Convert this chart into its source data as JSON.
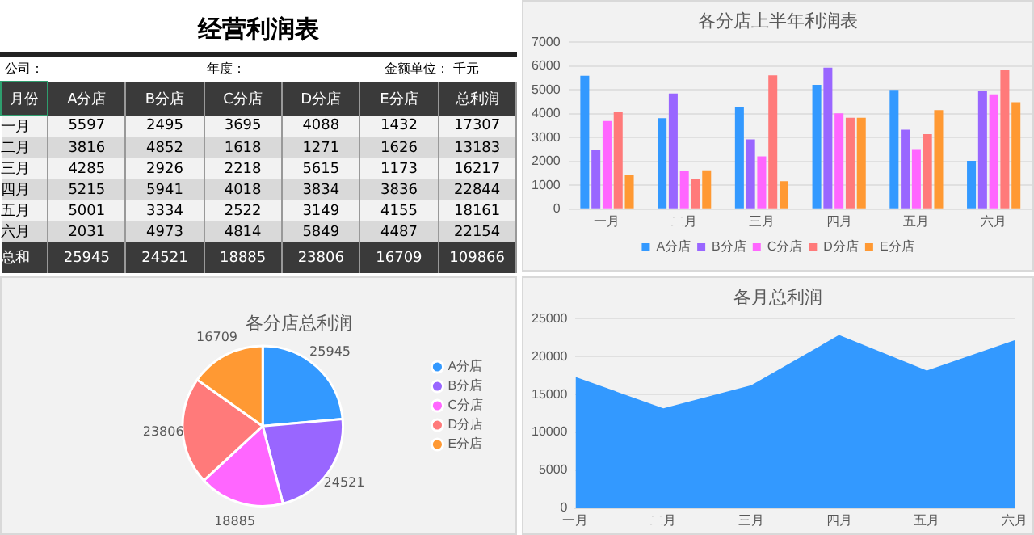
{
  "chart_data": [
    {
      "type": "heatmap",
      "title": "经营利润表",
      "annotations": [
        "公司：",
        "年度：",
        "金额单位： 千元"
      ],
      "ylabel": "月份",
      "data_labels": true,
      "categories": [
        "A分店",
        "B分店",
        "C分店",
        "D分店",
        "E分店",
        "总利润"
      ],
      "y_categories": [
        "一月",
        "二月",
        "三月",
        "四月",
        "五月",
        "六月",
        "总和"
      ],
      "cells": [
        [
          5597,
          2495,
          3695,
          4088,
          1432,
          17307
        ],
        [
          3816,
          4852,
          1618,
          1271,
          1626,
          13183
        ],
        [
          4285,
          2926,
          2218,
          5615,
          1173,
          16217
        ],
        [
          5215,
          5941,
          4018,
          3834,
          3836,
          22844
        ],
        [
          5001,
          3334,
          2522,
          3149,
          4155,
          18161
        ],
        [
          2031,
          4973,
          4814,
          5849,
          4487,
          22154
        ],
        [
          25945,
          24521,
          18885,
          23806,
          16709,
          109866
        ]
      ]
    },
    {
      "type": "bar",
      "title": "各分店上半年利润表",
      "categories": [
        "一月",
        "二月",
        "三月",
        "四月",
        "五月",
        "六月"
      ],
      "series": [
        {
          "name": "A分店",
          "color": "#3399ff",
          "values": [
            5597,
            3816,
            4285,
            5215,
            5001,
            2031
          ]
        },
        {
          "name": "B分店",
          "color": "#9966ff",
          "values": [
            2495,
            4852,
            2926,
            5941,
            3334,
            4973
          ]
        },
        {
          "name": "C分店",
          "color": "#ff66ff",
          "values": [
            3695,
            1618,
            2218,
            4018,
            2522,
            4814
          ]
        },
        {
          "name": "D分店",
          "color": "#ff7a7a",
          "values": [
            4088,
            1271,
            5615,
            3834,
            3149,
            5849
          ]
        },
        {
          "name": "E分店",
          "color": "#ff9933",
          "values": [
            1432,
            1626,
            1173,
            3836,
            4155,
            4487
          ]
        }
      ],
      "ylim": [
        0,
        7000
      ],
      "yticks": [
        0,
        1000,
        2000,
        3000,
        4000,
        5000,
        6000,
        7000
      ],
      "grid": "y",
      "legend": "bottom"
    },
    {
      "type": "pie",
      "title": "各分店总利润",
      "categories": [
        "A分店",
        "B分店",
        "C分店",
        "D分店",
        "E分店"
      ],
      "values": [
        25945,
        24521,
        18885,
        23806,
        16709
      ],
      "colors": [
        "#3399ff",
        "#9966ff",
        "#ff66ff",
        "#ff7a7a",
        "#ff9933"
      ],
      "data_labels": true,
      "legend": "right"
    },
    {
      "type": "area",
      "title": "各月总利润",
      "categories": [
        "一月",
        "二月",
        "三月",
        "四月",
        "五月",
        "六月"
      ],
      "series": [
        {
          "color": "#3399ff",
          "values": [
            17307,
            13183,
            16217,
            22844,
            18161,
            22154
          ]
        }
      ],
      "ylim": [
        0,
        25000
      ],
      "yticks": [
        0,
        5000,
        10000,
        15000,
        20000,
        25000
      ],
      "grid": "y"
    }
  ]
}
